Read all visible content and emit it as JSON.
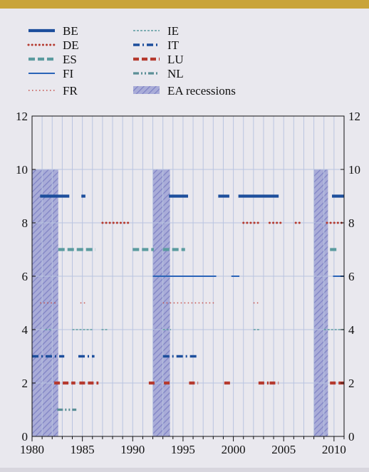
{
  "colors": {
    "background": "#e9e8ee",
    "top_bar": "#c9a43a",
    "grid": "#b9c4e0",
    "recession_fill": "#a9acd8",
    "recession_hatch": "#7e82c4",
    "BE": "#1c4e9c",
    "DE": "#b53a2f",
    "ES": "#5b9b9f",
    "FI": "#2a64b8",
    "FR": "#c44a45",
    "IE": "#5b9b9f",
    "IT": "#1c4e9c",
    "LU": "#b53a2f",
    "NL": "#5b8f96"
  },
  "chart_data": {
    "type": "line",
    "xlim": [
      1980,
      2011
    ],
    "ylim": [
      0,
      12
    ],
    "x_ticks": [
      1980,
      1985,
      1990,
      1995,
      2000,
      2005,
      2010
    ],
    "y_ticks": [
      0,
      2,
      4,
      6,
      8,
      10,
      12
    ],
    "grid": "vertical lines every year, horizontal lines every 2",
    "legend_position": "top",
    "legend": [
      {
        "key": "BE",
        "label": "BE"
      },
      {
        "key": "DE",
        "label": "DE"
      },
      {
        "key": "ES",
        "label": "ES"
      },
      {
        "key": "FI",
        "label": "FI"
      },
      {
        "key": "FR",
        "label": "FR"
      },
      {
        "key": "IE",
        "label": "IE"
      },
      {
        "key": "IT",
        "label": "IT"
      },
      {
        "key": "LU",
        "label": "LU"
      },
      {
        "key": "NL",
        "label": "NL"
      },
      {
        "key": "REC",
        "label": "EA recessions"
      }
    ],
    "recessions": [
      [
        1980.0,
        1982.6
      ],
      [
        1992.0,
        1993.7
      ],
      [
        2008.0,
        2009.4
      ]
    ],
    "series": [
      {
        "key": "BE",
        "name": "BE",
        "y": 9,
        "segments": [
          [
            1980.8,
            1983.7
          ],
          [
            1984.9,
            1985.3
          ],
          [
            1993.6,
            1995.5
          ],
          [
            1998.5,
            1999.6
          ],
          [
            2000.5,
            2004.5
          ],
          [
            2009.8,
            2011.0
          ]
        ]
      },
      {
        "key": "DE",
        "name": "DE",
        "y": 8,
        "segments": [
          [
            1987.0,
            1989.8
          ],
          [
            2001.0,
            2002.6
          ],
          [
            2003.6,
            2005.0
          ],
          [
            2006.2,
            2006.8
          ],
          [
            2009.3,
            2011.0
          ]
        ]
      },
      {
        "key": "ES",
        "name": "ES",
        "y": 7,
        "segments": [
          [
            1982.6,
            1986.3
          ],
          [
            1990.0,
            1992.1
          ],
          [
            1993.0,
            1995.2
          ],
          [
            2009.6,
            2010.5
          ]
        ]
      },
      {
        "key": "FI",
        "name": "FI",
        "y": 6,
        "segments": [
          [
            1992.0,
            1998.3
          ],
          [
            1999.8,
            2000.6
          ],
          [
            2009.9,
            2011.0
          ]
        ]
      },
      {
        "key": "FR",
        "name": "FR",
        "y": 5,
        "segments": [
          [
            1980.8,
            1982.5
          ],
          [
            1984.8,
            1985.4
          ],
          [
            1993.0,
            1998.3
          ],
          [
            2002.0,
            2002.6
          ]
        ]
      },
      {
        "key": "IE",
        "name": "IE",
        "y": 4,
        "segments": [
          [
            1981.3,
            1982.0
          ],
          [
            1984.0,
            1986.0
          ],
          [
            1986.9,
            1987.6
          ],
          [
            1993.0,
            1993.8
          ],
          [
            2002.0,
            2002.6
          ],
          [
            2009.0,
            2011.0
          ]
        ]
      },
      {
        "key": "IT",
        "name": "IT",
        "y": 3,
        "segments": [
          [
            1980.0,
            1983.2
          ],
          [
            1984.6,
            1986.2
          ],
          [
            1993.0,
            1996.5
          ]
        ]
      },
      {
        "key": "LU",
        "name": "LU",
        "y": 2,
        "segments": [
          [
            1982.2,
            1984.3
          ],
          [
            1984.7,
            1986.6
          ],
          [
            1991.6,
            1992.4
          ],
          [
            1993.1,
            1993.9
          ],
          [
            1995.6,
            1996.5
          ],
          [
            1999.1,
            1999.8
          ],
          [
            2002.5,
            2003.5
          ],
          [
            2003.6,
            2004.5
          ],
          [
            2009.6,
            2011.0
          ]
        ]
      },
      {
        "key": "NL",
        "name": "NL",
        "y": 1,
        "segments": [
          [
            1982.5,
            1984.4
          ]
        ]
      }
    ]
  }
}
